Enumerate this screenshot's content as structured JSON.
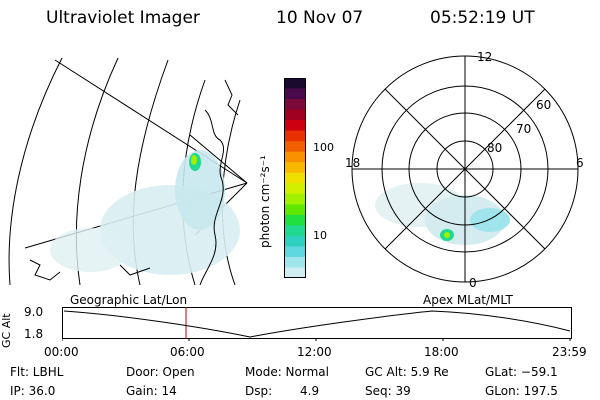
{
  "header": {
    "title": "Ultraviolet Imager",
    "date": "10 Nov 07",
    "time": "05:52:19 UT"
  },
  "colorbar": {
    "unit_label": "photon cm⁻²s⁻¹",
    "ticks": [
      "100",
      "10"
    ],
    "colors": [
      "#1a0a2e",
      "#4a0a4a",
      "#7a0a3a",
      "#a00020",
      "#cc0010",
      "#e83000",
      "#f06000",
      "#f89000",
      "#f8b800",
      "#f0e000",
      "#d0f000",
      "#a0f000",
      "#60e800",
      "#20e040",
      "#20d890",
      "#30d0c0",
      "#60d8e0",
      "#a0e4ec",
      "#d0eef2"
    ]
  },
  "polar": {
    "mlt_labels": {
      "top": "12",
      "left": "18",
      "right": "6",
      "bottom": "0"
    },
    "lat_labels": [
      "60",
      "70",
      "80"
    ]
  },
  "timeline": {
    "left_label": "Geographic Lat/Lon",
    "right_label": "Apex MLat/MLT",
    "y_axis_title": "GC Alt",
    "y_top": "9.0",
    "y_bottom": "1.8",
    "x_ticks": [
      "00:00",
      "06:00",
      "12:00",
      "18:00",
      "23:59"
    ]
  },
  "status": {
    "row1": {
      "filter": "Flt: LBHL",
      "door": "Door: Open",
      "mode": "Mode: Normal",
      "gc_alt": "GC Alt: 5.9 Re",
      "glat": "GLat: −59.1"
    },
    "row2": {
      "ip": "IP: 36.0",
      "gain": "Gain: 14",
      "dsp_label": "Dsp:",
      "dsp_value": "4.9",
      "seq": "Seq: 39",
      "glon": "GLon: 197.5"
    }
  }
}
